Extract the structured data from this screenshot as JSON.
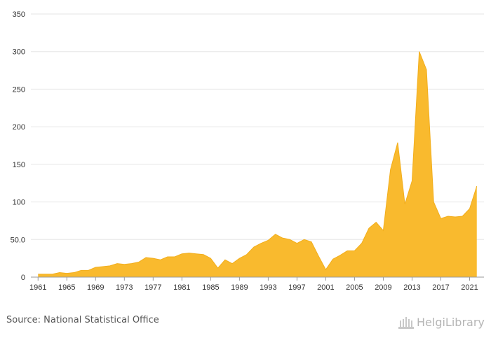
{
  "chart_data": {
    "type": "area",
    "title": "",
    "xlabel": "",
    "ylabel": "",
    "ylim": [
      0,
      350
    ],
    "xlim": [
      1960,
      2023
    ],
    "y_ticks": [
      "0",
      "50.0",
      "100",
      "150",
      "200",
      "250",
      "300",
      "350"
    ],
    "y_tick_values": [
      0,
      50,
      100,
      150,
      200,
      250,
      300,
      350
    ],
    "x_ticks": [
      "1961",
      "1965",
      "1969",
      "1973",
      "1977",
      "1981",
      "1985",
      "1989",
      "1993",
      "1997",
      "2001",
      "2005",
      "2009",
      "2013",
      "2017",
      "2021"
    ],
    "x_tick_values": [
      1961,
      1965,
      1969,
      1973,
      1977,
      1981,
      1985,
      1989,
      1993,
      1997,
      2001,
      2005,
      2009,
      2013,
      2017,
      2021
    ],
    "grid": true,
    "legend": "none",
    "fill_color": "#F9BA2E",
    "line_color": "#F2AE1C",
    "series": [
      {
        "x": [
          1961,
          1962,
          1963,
          1964,
          1965,
          1966,
          1967,
          1968,
          1969,
          1970,
          1971,
          1972,
          1973,
          1974,
          1975,
          1976,
          1977,
          1978,
          1979,
          1980,
          1981,
          1982,
          1983,
          1984,
          1985,
          1986,
          1987,
          1988,
          1989,
          1990,
          1991,
          1992,
          1993,
          1994,
          1995,
          1996,
          1997,
          1998,
          1999,
          2000,
          2001,
          2002,
          2003,
          2004,
          2005,
          2006,
          2007,
          2008,
          2009,
          2010,
          2011,
          2012,
          2013,
          2014,
          2015,
          2016,
          2017,
          2018,
          2019,
          2020,
          2021,
          2022
        ],
        "values": [
          4,
          4,
          4,
          6,
          5,
          6,
          9,
          9,
          13,
          14,
          15,
          18,
          17,
          18,
          20,
          26,
          25,
          23,
          27,
          27,
          31,
          32,
          31,
          30,
          25,
          12,
          23,
          18,
          25,
          30,
          40,
          45,
          49,
          57,
          52,
          50,
          45,
          50,
          47,
          28,
          10,
          24,
          29,
          35,
          35,
          45,
          65,
          73,
          62,
          143,
          179,
          97,
          128,
          300,
          276,
          100,
          78,
          81,
          80,
          81,
          91,
          121
        ]
      }
    ]
  },
  "footer": {
    "source": "Source: National Statistical Office",
    "logo_text": "HelgiLibrary"
  }
}
